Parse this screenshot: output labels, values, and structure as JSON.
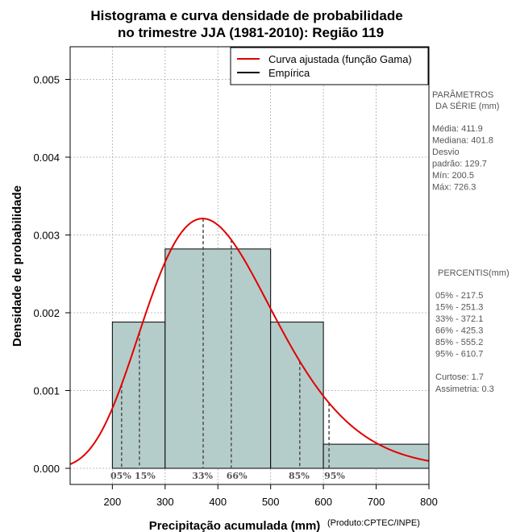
{
  "chart_data": {
    "type": "bar",
    "title_line1": "Histograma e curva densidade de probabilidade",
    "title_line2": "no trimestre JJA (1981-2010): Região 119",
    "xlabel": "Precipitação acumulada (mm)",
    "ylabel": "Densidade de probabilidade",
    "credit": "(Produto:CPTEC/INPE)",
    "xlim": [
      120,
      800
    ],
    "ylim": [
      0,
      0.0054
    ],
    "x_ticks": [
      200,
      300,
      400,
      500,
      600,
      700,
      800
    ],
    "x_tick_labels": [
      "200",
      "300",
      "400",
      "500",
      "600",
      "700",
      "800"
    ],
    "y_ticks": [
      0,
      0.001,
      0.002,
      0.003,
      0.004,
      0.005
    ],
    "y_tick_labels": [
      "0.000",
      "0.001",
      "0.002",
      "0.003",
      "0.004",
      "0.005"
    ],
    "histogram": {
      "bins": [
        {
          "start": 200,
          "end": 300,
          "density": 0.00188
        },
        {
          "start": 300,
          "end": 500,
          "density": 0.00282
        },
        {
          "start": 500,
          "end": 600,
          "density": 0.00188
        },
        {
          "start": 600,
          "end": 800,
          "density": 0.00031
        }
      ],
      "fill_color": "#b5cdca",
      "edge_color": "#000000"
    },
    "gamma_curve": {
      "mean": 411.9,
      "sd": 129.7,
      "color": "#e00000"
    },
    "legend": [
      {
        "label": "Curva ajustada (função Gama)",
        "color": "#e00000"
      },
      {
        "label": "Empírica",
        "color": "#000000"
      }
    ],
    "percentile_markers": [
      {
        "label": "05%",
        "value": 217.5
      },
      {
        "label": "15%",
        "value": 251.3
      },
      {
        "label": "33%",
        "value": 372.1
      },
      {
        "label": "66%",
        "value": 425.3
      },
      {
        "label": "85%",
        "value": 555.2
      },
      {
        "label": "95%",
        "value": 610.7
      }
    ],
    "grid": true
  },
  "side_panel": {
    "params_heading_1": "PARÂMETROS",
    "params_heading_2": "DA SÉRIE (mm)",
    "params": [
      "Média:  411.9",
      "Mediana:  401.8",
      "Desvio",
      "padrão:  129.7",
      "Mín:  200.5",
      "Máx:  726.3"
    ],
    "percentis_heading": "PERCENTIS(mm)",
    "percentis": [
      "05% -   217.5",
      "15% -   251.3",
      "33% -   372.1",
      "66% -   425.3",
      "85% -   555.2",
      "95% -   610.7"
    ],
    "stats": [
      "Curtose:  1.7",
      "Assimetria:  0.3"
    ]
  }
}
